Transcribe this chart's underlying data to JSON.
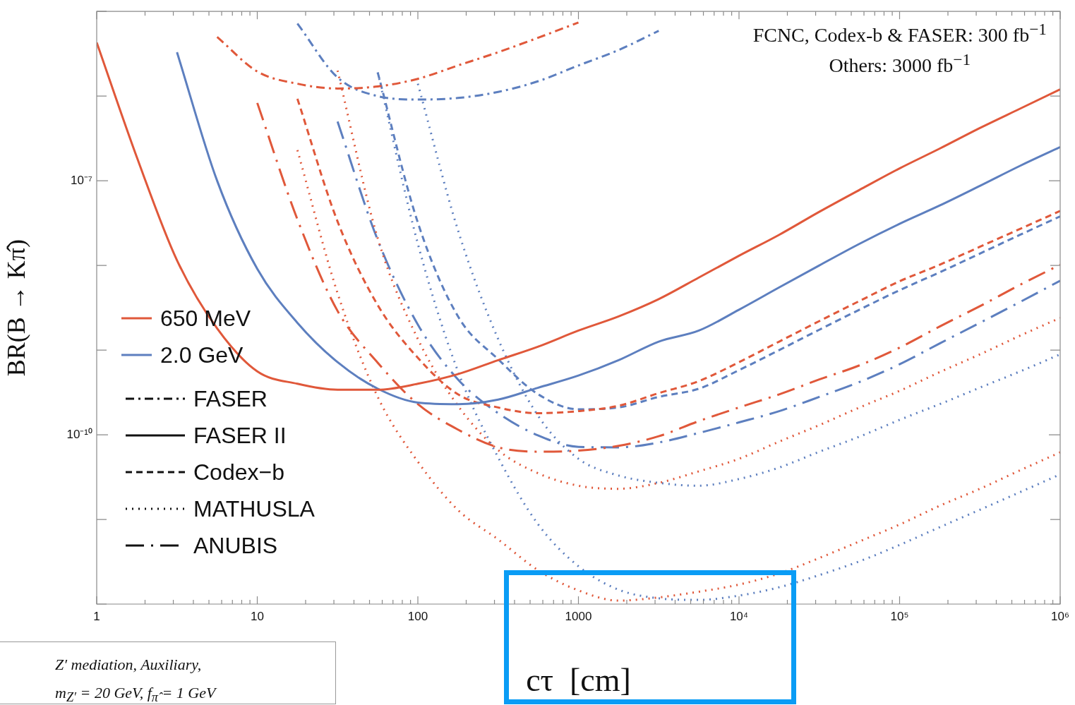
{
  "chart_data": {
    "type": "line",
    "xlabel": "cτ  [cm]",
    "ylabel": "BR(B → Kπ̂)",
    "log": "xy",
    "marker": "none",
    "xlim": [
      1,
      1000000
    ],
    "ylim": [
      1e-12,
      1e-05
    ],
    "xticks": [
      1,
      {
        "value": 2,
        "label": null
      },
      {
        "value": 3,
        "label": null
      },
      {
        "value": 4,
        "label": null
      },
      {
        "value": 5,
        "label": null
      },
      {
        "value": 6,
        "label": null
      },
      {
        "value": 7,
        "label": null
      },
      {
        "value": 8,
        "label": null
      },
      {
        "value": 9,
        "label": null
      },
      10,
      {
        "value": 20,
        "label": null
      },
      {
        "value": 30,
        "label": null
      },
      {
        "value": 40,
        "label": null
      },
      {
        "value": 50,
        "label": null
      },
      {
        "value": 60,
        "label": null
      },
      {
        "value": 70,
        "label": null
      },
      {
        "value": 80,
        "label": null
      },
      {
        "value": 90,
        "label": null
      },
      100,
      {
        "value": 200,
        "label": null
      },
      {
        "value": 300,
        "label": null
      },
      {
        "value": 400,
        "label": null
      },
      {
        "value": 500,
        "label": null
      },
      {
        "value": 600,
        "label": null
      },
      {
        "value": 700,
        "label": null
      },
      {
        "value": 800,
        "label": null
      },
      {
        "value": 900,
        "label": null
      },
      1000,
      {
        "value": 2000,
        "label": null
      },
      {
        "value": 3000,
        "label": null
      },
      {
        "value": 4000,
        "label": null
      },
      {
        "value": 5000,
        "label": null
      },
      {
        "value": 6000,
        "label": null
      },
      {
        "value": 7000,
        "label": null
      },
      {
        "value": 8000,
        "label": null
      },
      {
        "value": 9000,
        "label": null
      },
      {
        "value": 10000,
        "label": "10⁴"
      },
      {
        "value": 20000,
        "label": null
      },
      {
        "value": 30000,
        "label": null
      },
      {
        "value": 40000,
        "label": null
      },
      {
        "value": 50000,
        "label": null
      },
      {
        "value": 60000,
        "label": null
      },
      {
        "value": 70000,
        "label": null
      },
      {
        "value": 80000,
        "label": null
      },
      {
        "value": 90000,
        "label": null
      },
      {
        "value": 100000,
        "label": "10⁵"
      },
      {
        "value": 200000,
        "label": null
      },
      {
        "value": 300000,
        "label": null
      },
      {
        "value": 400000,
        "label": null
      },
      {
        "value": 500000,
        "label": null
      },
      {
        "value": 600000,
        "label": null
      },
      {
        "value": 700000,
        "label": null
      },
      {
        "value": 800000,
        "label": null
      },
      {
        "value": 900000,
        "label": null
      },
      {
        "value": 1000000,
        "label": "10⁶"
      }
    ],
    "yticks": [
      {
        "value": 1e-12,
        "label": null
      },
      {
        "value": 1e-11,
        "label": null
      },
      {
        "value": 1e-10,
        "label": "10⁻¹⁰"
      },
      {
        "value": 1e-09,
        "label": null
      },
      {
        "value": 1e-08,
        "label": null
      },
      {
        "value": 1e-07,
        "label": "10⁻⁷"
      },
      {
        "value": 1e-06,
        "label": null
      },
      {
        "value": 1e-05,
        "label": null
      }
    ],
    "x": [
      1,
      1.778,
      3.162,
      5.623,
      10,
      17.78,
      31.62,
      56.23,
      100,
      177.8,
      316.2,
      562.3,
      1000,
      1778,
      3162,
      5623,
      10000,
      17783,
      31623,
      56234,
      100000,
      177828,
      316228,
      562341,
      1000000
    ],
    "series": [
      {
        "color": "#e0583a",
        "line_style": "dashdot",
        "values": [
          null,
          null,
          null,
          5e-06,
          1.95e-06,
          1.4e-06,
          1.23e-06,
          1.3e-06,
          1.6e-06,
          2.3e-06,
          3.3e-06,
          4.9e-06,
          7.4e-06,
          null,
          null,
          null,
          null,
          null,
          null,
          null,
          null,
          null,
          null,
          null,
          null
        ]
      },
      {
        "color": "#5d7fbf",
        "line_style": "dashdot",
        "values": [
          null,
          null,
          null,
          null,
          null,
          7.2e-06,
          1.66e-06,
          1e-06,
          9.1e-07,
          9.5e-07,
          1.12e-06,
          1.5e-06,
          2.3e-06,
          3.5e-06,
          5.9e-06,
          null,
          null,
          null,
          null,
          null,
          null,
          null,
          null,
          null,
          null
        ]
      },
      {
        "color": "#e0583a",
        "line_style": "solid",
        "values": [
          4.3e-06,
          1.9e-07,
          1.15e-08,
          1.8e-09,
          5.6e-10,
          4e-10,
          3.4e-10,
          3.4e-10,
          4e-10,
          5.2e-10,
          7.6e-10,
          1.1e-09,
          1.7e-09,
          2.5e-09,
          4e-09,
          7.2e-09,
          1.3e-08,
          2.3e-08,
          4.3e-08,
          7.8e-08,
          1.4e-07,
          2.4e-07,
          4.2e-07,
          7.1e-07,
          1.2e-06
        ]
      },
      {
        "color": "#5d7fbf",
        "line_style": "solid",
        "values": [
          null,
          null,
          3.3e-06,
          1e-07,
          9.1e-09,
          2.1e-09,
          7.2e-10,
          3.5e-10,
          2.4e-10,
          2.3e-10,
          2.6e-10,
          3.6e-10,
          5e-10,
          7.6e-10,
          1.26e-09,
          1.7e-09,
          3e-09,
          5.5e-09,
          1e-08,
          1.8e-08,
          3.1e-08,
          5.1e-08,
          8.7e-08,
          1.5e-07,
          2.5e-07
        ]
      },
      {
        "color": "#e0583a",
        "line_style": "dashed",
        "values": [
          null,
          null,
          null,
          null,
          null,
          9.3e-07,
          3.3e-08,
          3.4e-09,
          8.1e-10,
          3e-10,
          2.1e-10,
          1.8e-10,
          1.9e-10,
          2.2e-10,
          3.1e-10,
          4.3e-10,
          7.2e-10,
          1.26e-09,
          2.2e-09,
          3.8e-09,
          6.5e-09,
          1.02e-08,
          1.66e-08,
          2.7e-08,
          4.4e-08
        ]
      },
      {
        "color": "#5d7fbf",
        "line_style": "dashed",
        "values": [
          null,
          null,
          null,
          null,
          null,
          null,
          null,
          1.9e-06,
          3.2e-08,
          2.5e-09,
          7.8e-10,
          3e-10,
          2e-10,
          2.1e-10,
          2.8e-10,
          3.5e-10,
          5.8e-10,
          1e-09,
          1.74e-09,
          3e-09,
          5.1e-09,
          8.3e-09,
          1.38e-08,
          2.3e-08,
          3.8e-08
        ]
      },
      {
        "color": "#e0583a",
        "line_style": "dotted",
        "values": [
          null,
          null,
          null,
          null,
          null,
          null,
          2e-06,
          2.1e-08,
          1.35e-09,
          2.2e-10,
          6.6e-11,
          3.5e-11,
          2.5e-11,
          2.3e-11,
          2.7e-11,
          3.7e-11,
          5.2e-11,
          8.3e-11,
          1.3e-10,
          2.1e-10,
          3.3e-10,
          5.5e-10,
          8.9e-10,
          1.48e-09,
          2.4e-09
        ]
      },
      {
        "color": "#5d7fbf",
        "line_style": "dotted",
        "values": [
          null,
          null,
          null,
          null,
          null,
          null,
          null,
          null,
          1.4e-06,
          2.6e-08,
          1.35e-09,
          1.66e-10,
          5.2e-11,
          3.3e-11,
          2.7e-11,
          2.5e-11,
          3e-11,
          4.1e-11,
          6.3e-11,
          9.5e-11,
          1.5e-10,
          2.3e-10,
          3.6e-10,
          5.6e-10,
          8.9e-10
        ]
      },
      {
        "color": "#e0583a",
        "line_style": "dotted",
        "values": [
          null,
          null,
          null,
          null,
          null,
          2.3e-07,
          4.7e-09,
          2.8e-10,
          4.8e-11,
          1.29e-11,
          5.8e-12,
          2.5e-12,
          1.45e-12,
          1.1e-12,
          1.2e-12,
          1.4e-12,
          1.7e-12,
          2.3e-12,
          3.5e-12,
          5.5e-12,
          8.7e-12,
          1.45e-11,
          2.3e-11,
          3.8e-11,
          6.2e-11
        ]
      },
      {
        "color": "#5d7fbf",
        "line_style": "dotted",
        "values": [
          null,
          null,
          null,
          null,
          null,
          null,
          null,
          1.9e-06,
          1.8e-08,
          5.6e-10,
          5.4e-11,
          8.7e-12,
          2.8e-12,
          1.48e-12,
          1.17e-12,
          1.12e-12,
          1.26e-12,
          1.58e-12,
          2.2e-12,
          3.2e-12,
          5e-12,
          8.1e-12,
          1.3e-11,
          2.1e-11,
          3.4e-11
        ]
      },
      {
        "color": "#e0583a",
        "line_style": "longdash",
        "values": [
          null,
          null,
          null,
          null,
          8.3e-07,
          3.5e-08,
          2.9e-09,
          7.1e-10,
          2.3e-10,
          1.15e-10,
          7.1e-11,
          6.3e-11,
          6.5e-11,
          7.4e-11,
          9.6e-11,
          1.45e-10,
          2.1e-10,
          3e-10,
          4.5e-10,
          6.6e-10,
          1.07e-09,
          1.9e-09,
          3.3e-09,
          5.9e-09,
          1.02e-08
        ]
      },
      {
        "color": "#5d7fbf",
        "line_style": "longdash",
        "values": [
          null,
          null,
          null,
          null,
          null,
          null,
          5e-07,
          2e-08,
          2e-09,
          4.5e-10,
          1.8e-10,
          9.8e-11,
          7.2e-11,
          7.1e-11,
          8.1e-11,
          1.05e-10,
          1.4e-10,
          1.9e-10,
          2.8e-10,
          4.2e-10,
          6.8e-10,
          1.2e-09,
          2.1e-09,
          3.7e-09,
          6.6e-09
        ]
      }
    ],
    "annotations": [
      "650 MeV",
      "2.0 GeV",
      "FASER",
      "FASER II",
      "Codex−b",
      "MATHUSLA",
      "ANUBIS",
      "FCNC, Codex-b & FASER: 300 fb$^{−1}$",
      "Others: 3000 fb$^{−1}$",
      "Z′ mediation, Auxiliary,",
      "m$_{Z′}$ = 20 GeV,  f$_{π̂}$ = 1 GeV"
    ]
  }
}
